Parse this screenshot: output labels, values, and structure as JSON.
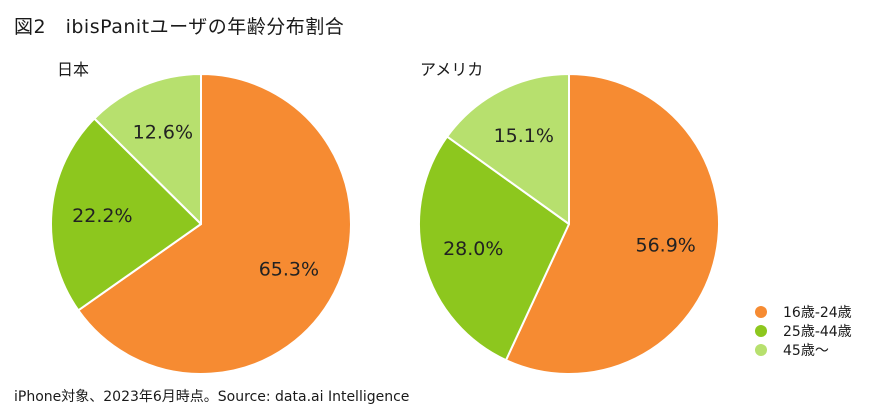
{
  "title": "図2　ibisPanitユーザの年齢分布割合",
  "source": "iPhone対象、2023年6月時点。Source: data.ai Intelligence",
  "chart_data": [
    {
      "type": "pie",
      "title": "日本",
      "categories": [
        "16歳-24歳",
        "25歳-44歳",
        "45歳〜"
      ],
      "values": [
        65.3,
        22.2,
        12.6
      ],
      "labels": [
        "65.3%",
        "22.2%",
        "12.6%"
      ],
      "colors": [
        "#F68B32",
        "#8DC71E",
        "#B7E06E"
      ]
    },
    {
      "type": "pie",
      "title": "アメリカ",
      "categories": [
        "16歳-24歳",
        "25歳-44歳",
        "45歳〜"
      ],
      "values": [
        56.9,
        28.0,
        15.1
      ],
      "labels": [
        "56.9%",
        "28.0%",
        "15.1%"
      ],
      "colors": [
        "#F68B32",
        "#8DC71E",
        "#B7E06E"
      ]
    }
  ],
  "legend": {
    "position": "bottom-right",
    "items": [
      {
        "label": "16歳-24歳",
        "color": "#F68B32"
      },
      {
        "label": "25歳-44歳",
        "color": "#8DC71E"
      },
      {
        "label": "45歳〜",
        "color": "#B7E06E"
      }
    ]
  }
}
